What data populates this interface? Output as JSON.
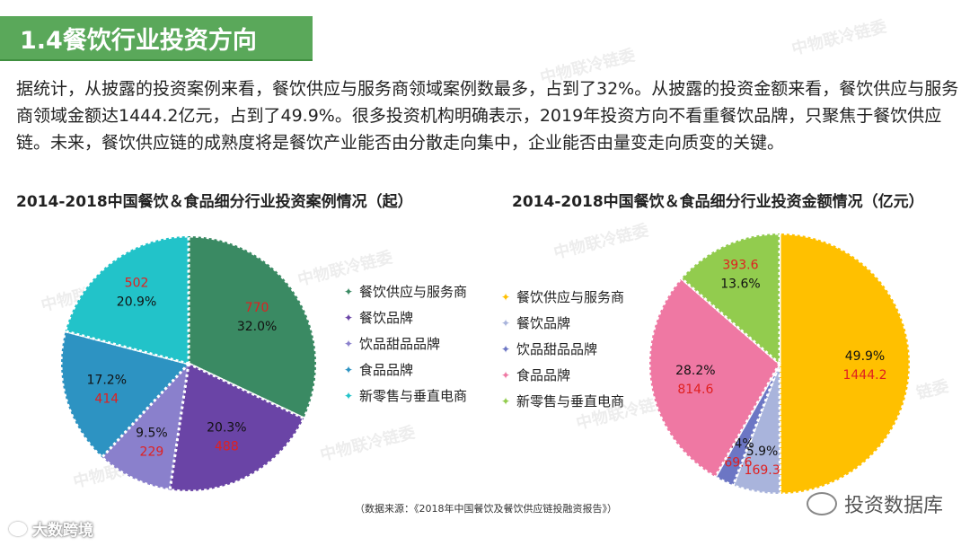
{
  "header": {
    "title": "1.4餐饮行业投资方向"
  },
  "intro": "据统计，从披露的投资案例来看，餐饮供应与服务商领域案例数最多，占到了32%。从披露的投资金额来看，餐饮供应与服务商领域金额达1444.2亿元，占到了49.9%。很多投资机构明确表示，2019年投资方向不看重餐饮品牌，只聚焦于餐饮供应链。未来，餐饮供应链的成熟度将是餐饮产业能否由分散走向集中，企业能否由量变走向质变的关键。",
  "chart_data": [
    {
      "type": "pie",
      "title": "2014-2018中国餐饮＆食品细分行业投资案例情况（起）",
      "slices": [
        {
          "label": "餐饮供应与服务商",
          "value": 770,
          "percent": "32.0%",
          "color": "#3a8a63"
        },
        {
          "label": "餐饮品牌",
          "value": 488,
          "percent": "20.3%",
          "color": "#6a44a6"
        },
        {
          "label": "饮品甜品品牌",
          "value": 229,
          "percent": "9.5%",
          "color": "#8a80cc"
        },
        {
          "label": "食品品牌",
          "value": 414,
          "percent": "17.2%",
          "color": "#2d93c2"
        },
        {
          "label": "新零售与垂直电商",
          "value": 502,
          "percent": "20.9%",
          "color": "#22c3c9"
        }
      ]
    },
    {
      "type": "pie",
      "title": "2014-2018中国餐饮＆食品细分行业投资金额情况（亿元）",
      "slices": [
        {
          "label": "餐饮供应与服务商",
          "value": 1444.2,
          "percent": "49.9%",
          "color": "#ffc000"
        },
        {
          "label": "餐饮品牌",
          "value": 169.3,
          "percent": "5.9%",
          "color": "#a9b4dc"
        },
        {
          "label": "饮品甜品品牌",
          "value": 69.6,
          "percent": "2.4%",
          "color": "#6c76c4"
        },
        {
          "label": "食品品牌",
          "value": 814.6,
          "percent": "28.2%",
          "color": "#ef78a3"
        },
        {
          "label": "新零售与垂直电商",
          "value": 393.6,
          "percent": "13.6%",
          "color": "#92cc4e"
        }
      ]
    }
  ],
  "colors": {
    "value_text": "#e02020",
    "title_bar": "#5aa85a"
  },
  "source": "（数据来源：《2018年中国餐饮及餐饮供应链投融资报告》）",
  "brand": "投资数据库",
  "footer_logo": "大数跨境",
  "watermarks": [
    "中物联冷链委",
    "中物联冷链委",
    "中物联冷链委",
    "中物联冷链委",
    "中物联冷链委",
    "中物联冷链委",
    "链委",
    "中物联",
    "中物联冷链委"
  ]
}
